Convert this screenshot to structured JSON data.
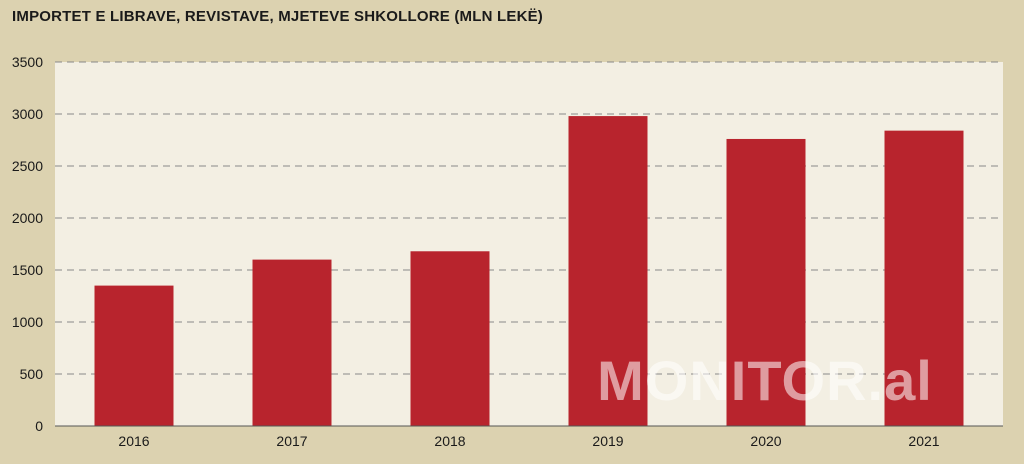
{
  "chart_data": {
    "type": "bar",
    "title": "IMPORTET E LIBRAVE, REVISTAVE, MJETEVE SHKOLLORE (MLN LEKË)",
    "xlabel": "",
    "ylabel": "",
    "categories": [
      "2016",
      "2017",
      "2018",
      "2019",
      "2020",
      "2021"
    ],
    "values": [
      1350,
      1600,
      1680,
      2980,
      2760,
      2840
    ],
    "ylim": [
      0,
      3500
    ],
    "yticks": [
      0,
      500,
      1000,
      1500,
      2000,
      2500,
      3000,
      3500
    ],
    "grid": true,
    "grid_style": "dashed",
    "legend": "none"
  },
  "colors": {
    "background": "#dcd2b0",
    "plot_area": "#f3efe3",
    "bar": "#b8242d",
    "grid": "#888888",
    "watermark": "rgba(255,255,255,0.55)"
  },
  "watermark": "MONITOR.al"
}
